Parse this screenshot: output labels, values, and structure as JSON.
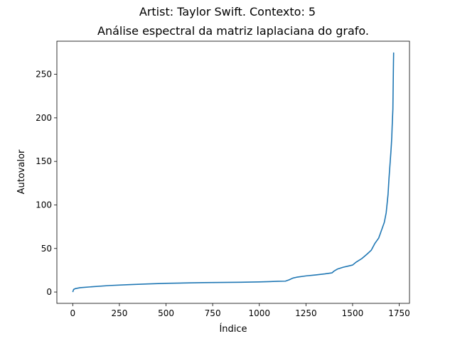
{
  "chart_data": {
    "type": "line",
    "suptitle": "Artist: Taylor Swift. Contexto: 5",
    "title": "Análise espectral da matriz laplaciana do grafo.",
    "xlabel": "Índice",
    "ylabel": "Autovalor",
    "xlim": [
      -85,
      1805
    ],
    "ylim": [
      -13,
      288
    ],
    "xticks": [
      0,
      250,
      500,
      750,
      1000,
      1250,
      1500,
      1750
    ],
    "yticks": [
      0,
      50,
      100,
      150,
      200,
      250
    ],
    "grid": false,
    "line_color": "#1f77b4",
    "series": [
      {
        "x": [
          0,
          5,
          15,
          40,
          100,
          200,
          300,
          400,
          500,
          600,
          700,
          800,
          900,
          1000,
          1100,
          1140,
          1160,
          1180,
          1200,
          1250,
          1300,
          1350,
          1390,
          1400,
          1420,
          1450,
          1480,
          1500,
          1520,
          1550,
          1580,
          1600,
          1620,
          1640,
          1660,
          1670,
          1680,
          1690,
          1695,
          1700,
          1705,
          1708,
          1710,
          1712,
          1714,
          1716,
          1717,
          1718,
          1719,
          1720
        ],
        "y": [
          0,
          3,
          4,
          5,
          6,
          7.5,
          8.5,
          9.3,
          10,
          10.4,
          10.8,
          11,
          11.2,
          11.6,
          12.3,
          12.5,
          14,
          16,
          17,
          18.5,
          19.6,
          20.8,
          22,
          24,
          26.5,
          28.5,
          30,
          31,
          34.5,
          38.5,
          44,
          48,
          56,
          62,
          74,
          80,
          91,
          112,
          130,
          145,
          160,
          170,
          178,
          190,
          200,
          210,
          228,
          245,
          262,
          275
        ]
      }
    ]
  }
}
